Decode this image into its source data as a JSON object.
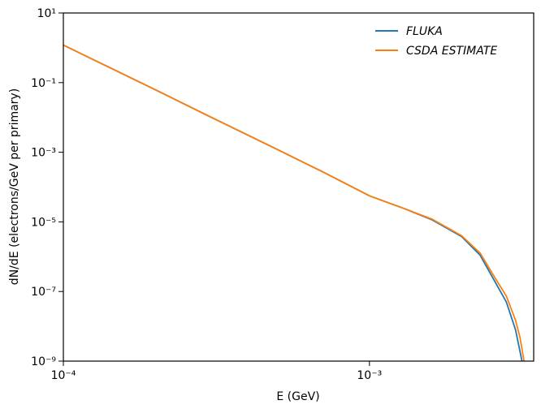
{
  "chart_data": {
    "type": "line",
    "xscale": "log",
    "yscale": "log",
    "legend": "upper right",
    "xlabel": "E (GeV)",
    "ylabel": "dN/dE (electrons/GeV per primary)",
    "xlim": [
      0.0001,
      0.00344
    ],
    "ylim": [
      1e-09,
      10
    ],
    "xticks": [
      {
        "value": 0.0001,
        "label": "10⁻⁴"
      },
      {
        "value": 0.001,
        "label": "10⁻³"
      }
    ],
    "yticks": [
      {
        "value": 1e-09,
        "label": "10⁻⁹"
      },
      {
        "value": 1e-07,
        "label": "10⁻⁷"
      },
      {
        "value": 1e-05,
        "label": "10⁻⁵"
      },
      {
        "value": 0.001,
        "label": "10⁻³"
      },
      {
        "value": 0.1,
        "label": "10⁻¹"
      },
      {
        "value": 10,
        "label": "10¹"
      }
    ],
    "series": [
      {
        "name": "FLUKA",
        "color": "#1f77b4",
        "x": [
          0.0001,
          0.0002,
          0.0003,
          0.0005,
          0.0007,
          0.001,
          0.0013,
          0.0016,
          0.002,
          0.0023,
          0.0026,
          0.0028,
          0.003,
          0.0031,
          0.00315
        ],
        "values": [
          1.2,
          0.062,
          0.0107,
          0.0012,
          0.00028,
          5.6e-05,
          2.4e-05,
          1.15e-05,
          3.8e-06,
          1.1e-06,
          1.6e-07,
          5e-08,
          8e-09,
          2e-09,
          1e-09
        ]
      },
      {
        "name": "CSDA ESTIMATE",
        "color": "#ff7f0e",
        "x": [
          0.0001,
          0.0002,
          0.0003,
          0.0005,
          0.0007,
          0.001,
          0.0013,
          0.0016,
          0.002,
          0.0023,
          0.0026,
          0.0028,
          0.003,
          0.0031,
          0.0032
        ],
        "values": [
          1.2,
          0.062,
          0.0107,
          0.0012,
          0.00028,
          5.6e-05,
          2.4e-05,
          1.2e-05,
          4e-06,
          1.26e-06,
          2.1e-07,
          7.4e-08,
          1.5e-08,
          5e-09,
          1e-09
        ]
      }
    ]
  }
}
